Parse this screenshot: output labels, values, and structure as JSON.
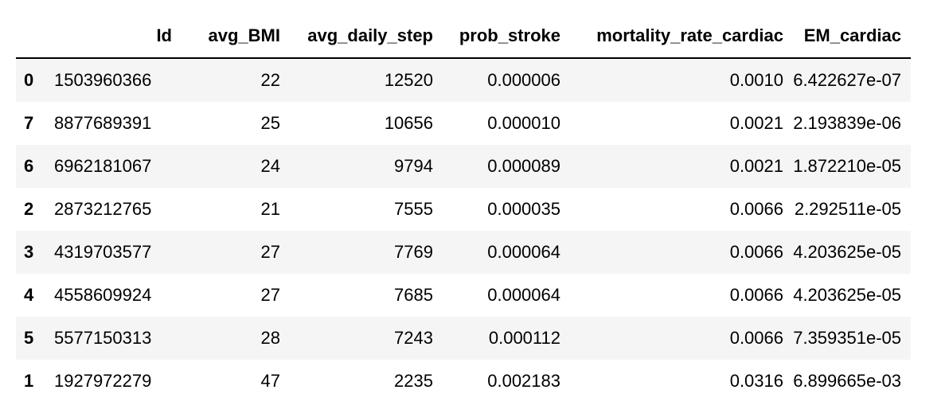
{
  "table": {
    "columns": [
      "",
      "Id",
      "avg_BMI",
      "avg_daily_step",
      "prob_stroke",
      "mortality_rate_cardiac",
      "EM_cardiac"
    ],
    "rows": [
      {
        "index": "0",
        "Id": "1503960366",
        "avg_BMI": "22",
        "avg_daily_step": "12520",
        "prob_stroke": "0.000006",
        "mortality_rate_cardiac": "0.0010",
        "EM_cardiac": "6.422627e-07"
      },
      {
        "index": "7",
        "Id": "8877689391",
        "avg_BMI": "25",
        "avg_daily_step": "10656",
        "prob_stroke": "0.000010",
        "mortality_rate_cardiac": "0.0021",
        "EM_cardiac": "2.193839e-06"
      },
      {
        "index": "6",
        "Id": "6962181067",
        "avg_BMI": "24",
        "avg_daily_step": "9794",
        "prob_stroke": "0.000089",
        "mortality_rate_cardiac": "0.0021",
        "EM_cardiac": "1.872210e-05"
      },
      {
        "index": "2",
        "Id": "2873212765",
        "avg_BMI": "21",
        "avg_daily_step": "7555",
        "prob_stroke": "0.000035",
        "mortality_rate_cardiac": "0.0066",
        "EM_cardiac": "2.292511e-05"
      },
      {
        "index": "3",
        "Id": "4319703577",
        "avg_BMI": "27",
        "avg_daily_step": "7769",
        "prob_stroke": "0.000064",
        "mortality_rate_cardiac": "0.0066",
        "EM_cardiac": "4.203625e-05"
      },
      {
        "index": "4",
        "Id": "4558609924",
        "avg_BMI": "27",
        "avg_daily_step": "7685",
        "prob_stroke": "0.000064",
        "mortality_rate_cardiac": "0.0066",
        "EM_cardiac": "4.203625e-05"
      },
      {
        "index": "5",
        "Id": "5577150313",
        "avg_BMI": "28",
        "avg_daily_step": "7243",
        "prob_stroke": "0.000112",
        "mortality_rate_cardiac": "0.0066",
        "EM_cardiac": "7.359351e-05"
      },
      {
        "index": "1",
        "Id": "1927972279",
        "avg_BMI": "47",
        "avg_daily_step": "2235",
        "prob_stroke": "0.002183",
        "mortality_rate_cardiac": "0.0316",
        "EM_cardiac": "6.899665e-03"
      }
    ]
  }
}
